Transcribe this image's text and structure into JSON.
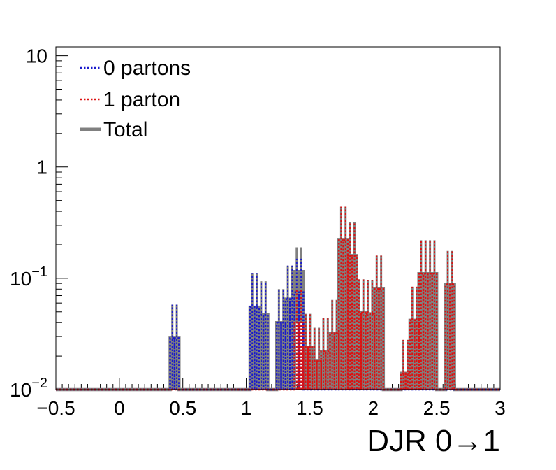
{
  "colors": {
    "zero_partons": "#1a1acc",
    "one_parton": "#dd1111",
    "total": "#808080"
  },
  "legend": {
    "items": [
      {
        "label": "0 partons",
        "style": "dotted",
        "color": "#1a1acc"
      },
      {
        "label": "1 parton",
        "style": "dotted",
        "color": "#dd1111"
      },
      {
        "label": "Total",
        "style": "solid",
        "color": "#808080"
      }
    ]
  },
  "chart_data": {
    "type": "line",
    "histogram": true,
    "xlabel_main": "DJR 0",
    "xlabel_arrow": "→",
    "xlabel_end": "1",
    "xlim": [
      -0.5,
      3.0
    ],
    "ylim": [
      0.01,
      12
    ],
    "yscale": "log",
    "x_ticks": [
      "−0.5",
      "0",
      "0.5",
      "1",
      "1.5",
      "2",
      "2.5",
      "3"
    ],
    "x_tick_values": [
      -0.5,
      0,
      0.5,
      1,
      1.5,
      2,
      2.5,
      3
    ],
    "y_ticks": [
      {
        "value": 10,
        "base": "10",
        "exp": ""
      },
      {
        "value": 1,
        "base": "1",
        "exp": ""
      },
      {
        "value": 0.1,
        "base": "10",
        "exp": "−1"
      },
      {
        "value": 0.01,
        "base": "10",
        "exp": "−2"
      }
    ],
    "bin_width": 0.035,
    "bins_low_edge": [
      0.4,
      0.435,
      1.03,
      1.065,
      1.1,
      1.135,
      1.24,
      1.275,
      1.31,
      1.345,
      1.38,
      1.415,
      1.45,
      1.485,
      1.52,
      1.555,
      1.59,
      1.625,
      1.66,
      1.695,
      1.73,
      1.765,
      1.8,
      1.835,
      1.87,
      1.905,
      1.94,
      1.975,
      2.01,
      2.045,
      2.08,
      2.115,
      2.15,
      2.185,
      2.22,
      2.255,
      2.29,
      2.325,
      2.36,
      2.395,
      2.43,
      2.465,
      2.5,
      2.535,
      2.57,
      2.605,
      2.64
    ],
    "series": [
      {
        "name": "0 partons",
        "values": [
          0.029,
          0.029,
          0.055,
          0.055,
          0.047,
          0.047,
          0.04,
          0.04,
          0.065,
          0.065,
          0.075,
          0.075,
          0,
          0,
          0,
          0,
          0,
          0,
          0,
          0,
          0,
          0,
          0,
          0,
          0,
          0,
          0,
          0,
          0,
          0,
          0,
          0,
          0,
          0,
          0,
          0,
          0,
          0,
          0,
          0,
          0,
          0,
          0,
          0,
          0,
          0,
          0
        ],
        "errors": [
          0.029,
          0.029,
          0.055,
          0.055,
          0.047,
          0.047,
          0.04,
          0.04,
          0.065,
          0.065,
          0.075,
          0.075,
          0,
          0,
          0,
          0,
          0,
          0,
          0,
          0,
          0,
          0,
          0,
          0,
          0,
          0,
          0,
          0,
          0,
          0,
          0,
          0,
          0,
          0,
          0,
          0,
          0,
          0,
          0,
          0,
          0,
          0,
          0,
          0,
          0,
          0,
          0
        ]
      },
      {
        "name": "1 parton",
        "values": [
          0,
          0,
          0,
          0,
          0,
          0,
          0,
          0,
          0,
          0,
          0.04,
          0.04,
          0.024,
          0.024,
          0.018,
          0.018,
          0.022,
          0.022,
          0.032,
          0.032,
          0.22,
          0.22,
          0.16,
          0.16,
          0.049,
          0.049,
          0.048,
          0.048,
          0.08,
          0.08,
          0,
          0,
          0,
          0,
          0.014,
          0.014,
          0.042,
          0.042,
          0.11,
          0.11,
          0.11,
          0.11,
          0,
          0,
          0.088,
          0.088,
          0
        ],
        "errors": [
          0,
          0,
          0,
          0,
          0,
          0,
          0,
          0,
          0,
          0,
          0.04,
          0.04,
          0.024,
          0.024,
          0.018,
          0.018,
          0.022,
          0.022,
          0.032,
          0.032,
          0.22,
          0.22,
          0.16,
          0.16,
          0.049,
          0.049,
          0.048,
          0.048,
          0.08,
          0.08,
          0,
          0,
          0,
          0,
          0.014,
          0.014,
          0.042,
          0.042,
          0.11,
          0.11,
          0.11,
          0.11,
          0,
          0,
          0.088,
          0.088,
          0
        ]
      },
      {
        "name": "Total",
        "values": [
          0.029,
          0.029,
          0.055,
          0.055,
          0.047,
          0.047,
          0.04,
          0.04,
          0.065,
          0.065,
          0.115,
          0.115,
          0.024,
          0.024,
          0.018,
          0.018,
          0.022,
          0.022,
          0.032,
          0.032,
          0.22,
          0.22,
          0.16,
          0.16,
          0.049,
          0.049,
          0.048,
          0.048,
          0.08,
          0.08,
          0,
          0,
          0,
          0,
          0.014,
          0.014,
          0.042,
          0.042,
          0.11,
          0.11,
          0.11,
          0.11,
          0,
          0,
          0.088,
          0.088,
          0
        ],
        "errors": [
          0.029,
          0.029,
          0.055,
          0.055,
          0.047,
          0.047,
          0.04,
          0.04,
          0.065,
          0.065,
          0.075,
          0.075,
          0.024,
          0.024,
          0.018,
          0.018,
          0.022,
          0.022,
          0.032,
          0.032,
          0.22,
          0.22,
          0.16,
          0.16,
          0.049,
          0.049,
          0.048,
          0.048,
          0.08,
          0.08,
          0,
          0,
          0,
          0,
          0.014,
          0.014,
          0.042,
          0.042,
          0.11,
          0.11,
          0.11,
          0.11,
          0,
          0,
          0.088,
          0.088,
          0
        ]
      }
    ],
    "grid": false,
    "legend_position": "top-left"
  }
}
